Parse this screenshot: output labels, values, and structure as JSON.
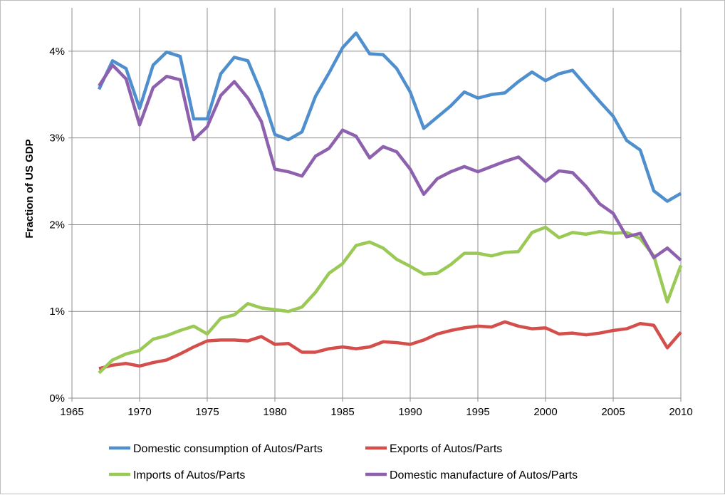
{
  "chart_data": {
    "type": "line",
    "title": "",
    "xlabel": "",
    "ylabel": "Fraction of US GDP",
    "xlim": [
      1965,
      2010
    ],
    "ylim": [
      0,
      4.5
    ],
    "grid": true,
    "legend_position": "bottom",
    "x_ticks": [
      1965,
      1970,
      1975,
      1980,
      1985,
      1990,
      1995,
      2000,
      2005,
      2010
    ],
    "x_tick_labels": [
      "1965",
      "1970",
      "1975",
      "1980",
      "1985",
      "1990",
      "1995",
      "2000",
      "2005",
      "2010"
    ],
    "y_ticks": [
      0,
      1,
      2,
      3,
      4
    ],
    "y_tick_labels": [
      "0%",
      "1%",
      "2%",
      "3%",
      "4%"
    ],
    "x": [
      1967,
      1968,
      1969,
      1970,
      1971,
      1972,
      1973,
      1974,
      1975,
      1976,
      1977,
      1978,
      1979,
      1980,
      1981,
      1982,
      1983,
      1984,
      1985,
      1986,
      1987,
      1988,
      1989,
      1990,
      1991,
      1992,
      1993,
      1994,
      1995,
      1996,
      1997,
      1998,
      1999,
      2000,
      2001,
      2002,
      2003,
      2004,
      2005,
      2006,
      2007,
      2008,
      2009,
      2010
    ],
    "series": [
      {
        "name": "Domestic consumption of Autos/Parts",
        "color": "#4f8fcd",
        "values": [
          3.56,
          3.89,
          3.8,
          3.34,
          3.84,
          3.99,
          3.94,
          3.22,
          3.22,
          3.74,
          3.93,
          3.89,
          3.52,
          3.04,
          2.98,
          3.07,
          3.48,
          3.75,
          4.04,
          4.21,
          3.97,
          3.96,
          3.8,
          3.53,
          3.11,
          3.24,
          3.37,
          3.53,
          3.46,
          3.5,
          3.52,
          3.65,
          3.76,
          3.66,
          3.74,
          3.78,
          3.6,
          3.42,
          3.25,
          2.97,
          2.86,
          2.39,
          2.27,
          2.36
        ]
      },
      {
        "name": "Exports of Autos/Parts",
        "color": "#d44f4c",
        "values": [
          0.34,
          0.38,
          0.4,
          0.37,
          0.41,
          0.44,
          0.51,
          0.59,
          0.66,
          0.67,
          0.67,
          0.66,
          0.71,
          0.62,
          0.63,
          0.53,
          0.53,
          0.57,
          0.59,
          0.57,
          0.59,
          0.65,
          0.64,
          0.62,
          0.67,
          0.74,
          0.78,
          0.81,
          0.83,
          0.82,
          0.88,
          0.83,
          0.8,
          0.81,
          0.74,
          0.75,
          0.73,
          0.75,
          0.78,
          0.8,
          0.86,
          0.84,
          0.58,
          0.76
        ]
      },
      {
        "name": "Imports of Autos/Parts",
        "color": "#9bc955",
        "values": [
          0.29,
          0.44,
          0.51,
          0.55,
          0.68,
          0.72,
          0.78,
          0.83,
          0.74,
          0.92,
          0.96,
          1.09,
          1.04,
          1.02,
          1.0,
          1.05,
          1.22,
          1.44,
          1.55,
          1.76,
          1.8,
          1.73,
          1.6,
          1.52,
          1.43,
          1.44,
          1.54,
          1.67,
          1.67,
          1.64,
          1.68,
          1.69,
          1.91,
          1.97,
          1.85,
          1.91,
          1.89,
          1.92,
          1.9,
          1.91,
          1.84,
          1.64,
          1.11,
          1.53
        ]
      },
      {
        "name": "Domestic manufacture of Autos/Parts",
        "color": "#8d61ad",
        "values": [
          3.6,
          3.84,
          3.68,
          3.15,
          3.58,
          3.71,
          3.67,
          2.98,
          3.13,
          3.49,
          3.65,
          3.46,
          3.19,
          2.64,
          2.61,
          2.56,
          2.79,
          2.88,
          3.09,
          3.02,
          2.77,
          2.9,
          2.84,
          2.64,
          2.35,
          2.53,
          2.61,
          2.67,
          2.61,
          2.67,
          2.73,
          2.78,
          2.64,
          2.5,
          2.62,
          2.6,
          2.44,
          2.24,
          2.13,
          1.86,
          1.9,
          1.62,
          1.73,
          1.59
        ]
      }
    ]
  }
}
